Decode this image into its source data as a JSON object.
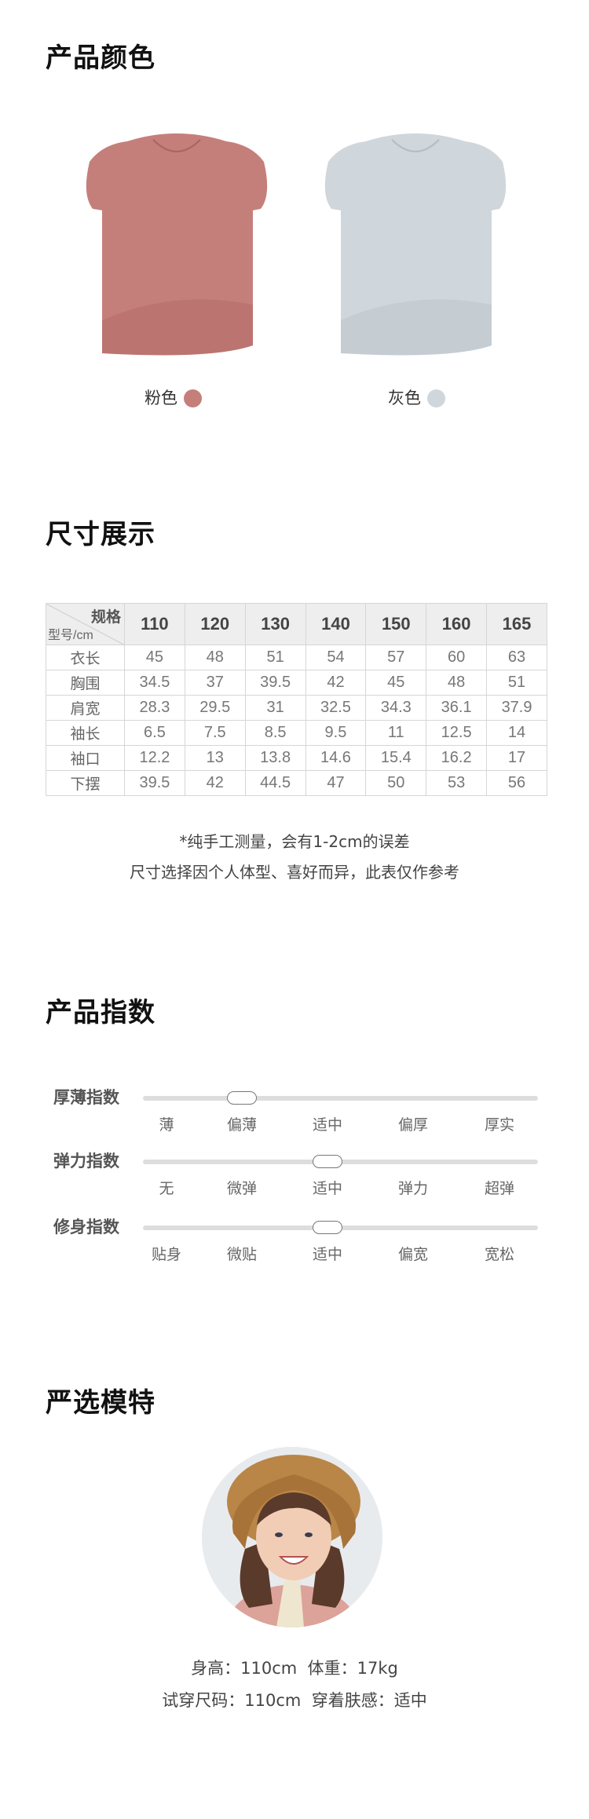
{
  "colors_section": {
    "title": "产品颜色",
    "items": [
      {
        "label": "粉色",
        "color": "#c57f7a"
      },
      {
        "label": "灰色",
        "color": "#cfd6dc"
      }
    ]
  },
  "size_section": {
    "title": "尺寸展示",
    "corner_top": "规格",
    "corner_bottom": "型号/cm",
    "sizes": [
      "110",
      "120",
      "130",
      "140",
      "150",
      "160",
      "165"
    ],
    "rows": [
      {
        "label": "衣长",
        "values": [
          "45",
          "48",
          "51",
          "54",
          "57",
          "60",
          "63"
        ]
      },
      {
        "label": "胸围",
        "values": [
          "34.5",
          "37",
          "39.5",
          "42",
          "45",
          "48",
          "51"
        ]
      },
      {
        "label": "肩宽",
        "values": [
          "28.3",
          "29.5",
          "31",
          "32.5",
          "34.3",
          "36.1",
          "37.9"
        ]
      },
      {
        "label": "袖长",
        "values": [
          "6.5",
          "7.5",
          "8.5",
          "9.5",
          "11",
          "12.5",
          "14"
        ]
      },
      {
        "label": "袖口",
        "values": [
          "12.2",
          "13",
          "13.8",
          "14.6",
          "15.4",
          "16.2",
          "17"
        ]
      },
      {
        "label": "下摆",
        "values": [
          "39.5",
          "42",
          "44.5",
          "47",
          "50",
          "53",
          "56"
        ]
      }
    ],
    "note1": "*纯手工测量，会有1-2cm的误差",
    "note2": "尺寸选择因个人体型、喜好而异，此表仅作参考"
  },
  "index_section": {
    "title": "产品指数",
    "indices": [
      {
        "label": "厚薄指数",
        "options": [
          "薄",
          "偏薄",
          "适中",
          "偏厚",
          "厚实"
        ],
        "selected": 1
      },
      {
        "label": "弹力指数",
        "options": [
          "无",
          "微弹",
          "适中",
          "弹力",
          "超弹"
        ],
        "selected": 2
      },
      {
        "label": "修身指数",
        "options": [
          "贴身",
          "微贴",
          "适中",
          "偏宽",
          "宽松"
        ],
        "selected": 2
      }
    ]
  },
  "model_section": {
    "title": "严选模特",
    "line1": "身高：110cm  体重：17kg",
    "line2": "试穿尺码：110cm  穿着肤感：适中"
  }
}
